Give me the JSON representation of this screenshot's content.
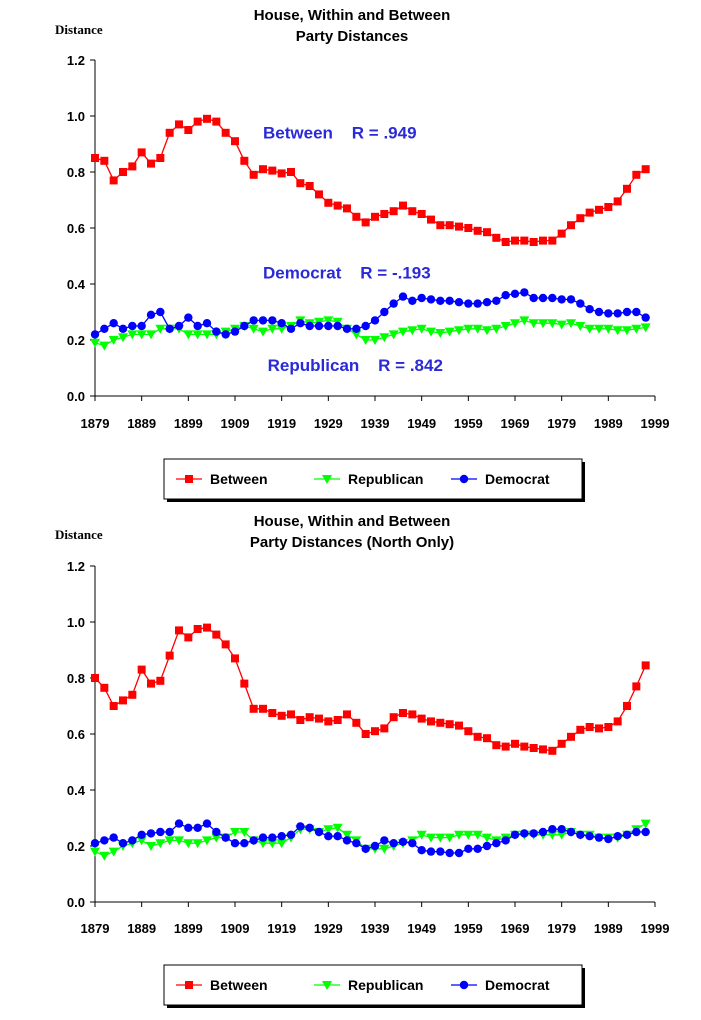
{
  "colors": {
    "between": "#ff0000",
    "republican": "#00ff00",
    "democrat": "#0000ff",
    "annotation": "#2a2ad8"
  },
  "chart_data": [
    {
      "type": "line",
      "title": [
        "House, Within and Between",
        "Party Distances"
      ],
      "ylabel": "Distance",
      "xlabel": "",
      "ylim": [
        0,
        1.2
      ],
      "yticks": [
        "0.0",
        "0.2",
        "0.4",
        "0.6",
        "0.8",
        "1.0",
        "1.2"
      ],
      "xlim": [
        1879,
        1999
      ],
      "xticks": [
        "1879",
        "1889",
        "1899",
        "1909",
        "1919",
        "1929",
        "1939",
        "1949",
        "1959",
        "1969",
        "1979",
        "1989",
        "1999"
      ],
      "x": [
        1879,
        1881,
        1883,
        1885,
        1887,
        1889,
        1891,
        1893,
        1895,
        1897,
        1899,
        1901,
        1903,
        1905,
        1907,
        1909,
        1911,
        1913,
        1915,
        1917,
        1919,
        1921,
        1923,
        1925,
        1927,
        1929,
        1931,
        1933,
        1935,
        1937,
        1939,
        1941,
        1943,
        1945,
        1947,
        1949,
        1951,
        1953,
        1955,
        1957,
        1959,
        1961,
        1963,
        1965,
        1967,
        1969,
        1971,
        1973,
        1975,
        1977,
        1979,
        1981,
        1983,
        1985,
        1987,
        1989,
        1991,
        1993,
        1995,
        1997
      ],
      "series": [
        {
          "name": "Between",
          "key": "between",
          "marker": "square",
          "values": [
            0.85,
            0.84,
            0.77,
            0.8,
            0.82,
            0.87,
            0.83,
            0.85,
            0.94,
            0.97,
            0.95,
            0.98,
            0.99,
            0.98,
            0.94,
            0.91,
            0.84,
            0.79,
            0.81,
            0.805,
            0.795,
            0.8,
            0.76,
            0.75,
            0.72,
            0.69,
            0.68,
            0.67,
            0.64,
            0.62,
            0.64,
            0.65,
            0.66,
            0.68,
            0.66,
            0.65,
            0.63,
            0.61,
            0.61,
            0.605,
            0.6,
            0.59,
            0.585,
            0.565,
            0.55,
            0.555,
            0.555,
            0.55,
            0.555,
            0.555,
            0.58,
            0.61,
            0.635,
            0.655,
            0.665,
            0.675,
            0.695,
            0.74,
            0.79,
            0.81
          ]
        },
        {
          "name": "Republican",
          "key": "republican",
          "marker": "triangle-down",
          "values": [
            0.19,
            0.18,
            0.2,
            0.21,
            0.22,
            0.22,
            0.22,
            0.24,
            0.24,
            0.24,
            0.22,
            0.22,
            0.22,
            0.22,
            0.23,
            0.24,
            0.25,
            0.24,
            0.23,
            0.24,
            0.24,
            0.25,
            0.27,
            0.26,
            0.265,
            0.27,
            0.265,
            0.24,
            0.22,
            0.2,
            0.2,
            0.21,
            0.22,
            0.23,
            0.235,
            0.24,
            0.23,
            0.225,
            0.23,
            0.235,
            0.24,
            0.24,
            0.235,
            0.24,
            0.25,
            0.26,
            0.27,
            0.26,
            0.26,
            0.26,
            0.255,
            0.26,
            0.25,
            0.24,
            0.24,
            0.24,
            0.235,
            0.235,
            0.24,
            0.245
          ]
        },
        {
          "name": "Democrat",
          "key": "democrat",
          "marker": "circle",
          "values": [
            0.22,
            0.24,
            0.26,
            0.24,
            0.25,
            0.25,
            0.29,
            0.3,
            0.24,
            0.25,
            0.28,
            0.25,
            0.26,
            0.23,
            0.22,
            0.23,
            0.25,
            0.27,
            0.27,
            0.27,
            0.26,
            0.24,
            0.26,
            0.25,
            0.25,
            0.25,
            0.25,
            0.24,
            0.24,
            0.25,
            0.27,
            0.3,
            0.33,
            0.355,
            0.34,
            0.35,
            0.345,
            0.34,
            0.34,
            0.335,
            0.33,
            0.33,
            0.335,
            0.34,
            0.36,
            0.365,
            0.37,
            0.35,
            0.35,
            0.35,
            0.345,
            0.345,
            0.33,
            0.31,
            0.3,
            0.295,
            0.295,
            0.3,
            0.3,
            0.28
          ]
        }
      ],
      "annotations": [
        {
          "text": "Between    R = .949",
          "x": 1915,
          "y": 0.92
        },
        {
          "text": "Democrat    R = -.193",
          "x": 1915,
          "y": 0.42
        },
        {
          "text": "Republican    R = .842",
          "x": 1916,
          "y": 0.09
        }
      ],
      "legend": {
        "position": "bottom",
        "entries": [
          "Between",
          "Republican",
          "Democrat"
        ]
      }
    },
    {
      "type": "line",
      "title": [
        "House, Within and Between",
        "Party Distances (North Only)"
      ],
      "ylabel": "Distance",
      "xlabel": "",
      "ylim": [
        0,
        1.2
      ],
      "yticks": [
        "0.0",
        "0.2",
        "0.4",
        "0.6",
        "0.8",
        "1.0",
        "1.2"
      ],
      "xlim": [
        1879,
        1999
      ],
      "xticks": [
        "1879",
        "1889",
        "1899",
        "1909",
        "1919",
        "1929",
        "1939",
        "1949",
        "1959",
        "1969",
        "1979",
        "1989",
        "1999"
      ],
      "x": [
        1879,
        1881,
        1883,
        1885,
        1887,
        1889,
        1891,
        1893,
        1895,
        1897,
        1899,
        1901,
        1903,
        1905,
        1907,
        1909,
        1911,
        1913,
        1915,
        1917,
        1919,
        1921,
        1923,
        1925,
        1927,
        1929,
        1931,
        1933,
        1935,
        1937,
        1939,
        1941,
        1943,
        1945,
        1947,
        1949,
        1951,
        1953,
        1955,
        1957,
        1959,
        1961,
        1963,
        1965,
        1967,
        1969,
        1971,
        1973,
        1975,
        1977,
        1979,
        1981,
        1983,
        1985,
        1987,
        1989,
        1991,
        1993,
        1995,
        1997
      ],
      "series": [
        {
          "name": "Between",
          "key": "between",
          "marker": "square",
          "values": [
            0.8,
            0.765,
            0.7,
            0.72,
            0.74,
            0.83,
            0.78,
            0.79,
            0.88,
            0.97,
            0.945,
            0.975,
            0.98,
            0.955,
            0.92,
            0.87,
            0.78,
            0.69,
            0.69,
            0.675,
            0.665,
            0.67,
            0.65,
            0.66,
            0.655,
            0.645,
            0.65,
            0.67,
            0.64,
            0.6,
            0.61,
            0.62,
            0.66,
            0.675,
            0.67,
            0.655,
            0.645,
            0.64,
            0.635,
            0.63,
            0.61,
            0.59,
            0.585,
            0.56,
            0.555,
            0.565,
            0.555,
            0.55,
            0.545,
            0.54,
            0.565,
            0.59,
            0.615,
            0.625,
            0.62,
            0.625,
            0.645,
            0.7,
            0.77,
            0.845
          ]
        },
        {
          "name": "Republican",
          "key": "republican",
          "marker": "triangle-down",
          "values": [
            0.18,
            0.165,
            0.18,
            0.2,
            0.21,
            0.22,
            0.2,
            0.21,
            0.22,
            0.22,
            0.21,
            0.21,
            0.22,
            0.23,
            0.23,
            0.25,
            0.25,
            0.22,
            0.21,
            0.21,
            0.21,
            0.23,
            0.26,
            0.26,
            0.25,
            0.26,
            0.265,
            0.24,
            0.22,
            0.19,
            0.19,
            0.19,
            0.2,
            0.21,
            0.22,
            0.24,
            0.23,
            0.23,
            0.23,
            0.24,
            0.24,
            0.24,
            0.23,
            0.22,
            0.23,
            0.24,
            0.24,
            0.24,
            0.24,
            0.24,
            0.24,
            0.25,
            0.24,
            0.24,
            0.23,
            0.23,
            0.23,
            0.24,
            0.26,
            0.28
          ]
        },
        {
          "name": "Democrat",
          "key": "democrat",
          "marker": "circle",
          "values": [
            0.21,
            0.22,
            0.23,
            0.21,
            0.22,
            0.24,
            0.245,
            0.25,
            0.25,
            0.28,
            0.265,
            0.265,
            0.28,
            0.25,
            0.23,
            0.21,
            0.21,
            0.22,
            0.23,
            0.23,
            0.235,
            0.24,
            0.27,
            0.265,
            0.25,
            0.235,
            0.235,
            0.22,
            0.21,
            0.19,
            0.2,
            0.22,
            0.21,
            0.215,
            0.21,
            0.185,
            0.18,
            0.18,
            0.175,
            0.175,
            0.19,
            0.19,
            0.2,
            0.21,
            0.22,
            0.24,
            0.245,
            0.245,
            0.25,
            0.26,
            0.26,
            0.25,
            0.24,
            0.235,
            0.23,
            0.225,
            0.235,
            0.24,
            0.25,
            0.25
          ]
        }
      ],
      "annotations": [],
      "legend": {
        "position": "bottom",
        "entries": [
          "Between",
          "Republican",
          "Democrat"
        ]
      }
    }
  ]
}
